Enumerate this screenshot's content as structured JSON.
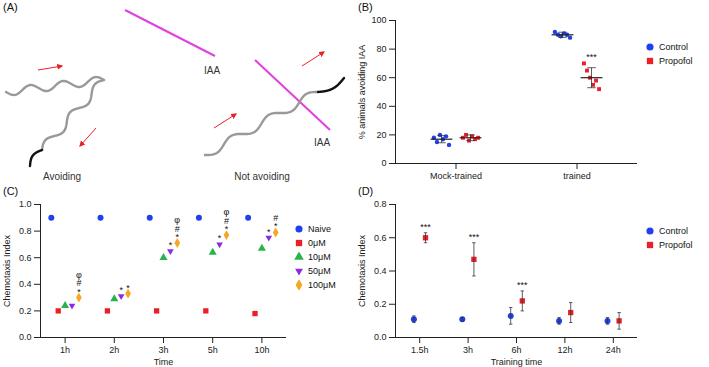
{
  "chart_data": [
    {
      "type": "diagram",
      "title": "(A)",
      "labels": [
        "Avoiding",
        "Not avoiding"
      ],
      "stimulus": "IAA"
    },
    {
      "type": "scatter",
      "title": "(B)",
      "categories": [
        "Mock-trained",
        "trained"
      ],
      "y_label": "% animals avoiding IAA",
      "ylim": [
        0,
        100
      ],
      "yticks": [
        0,
        20,
        40,
        60,
        80,
        100
      ],
      "legend": "right",
      "series": [
        {
          "name": "Control",
          "color": "#1f3ff0",
          "marker": "circle",
          "values": [
            17,
            90
          ],
          "sd": [
            2.5,
            1.8
          ],
          "points": [
            [
              18,
              15,
              20,
              17,
              19,
              13
            ],
            [
              92,
              90,
              89,
              91,
              90,
              88
            ]
          ]
        },
        {
          "name": "Propofol",
          "color": "#e8202a",
          "marker": "square",
          "values": [
            18,
            60
          ],
          "sd": [
            2,
            7
          ],
          "points": [
            [
              18,
              20,
              16,
              19,
              17,
              18
            ],
            [
              70,
              65,
              60,
              55,
              58,
              52
            ]
          ]
        }
      ],
      "annotations": [
        {
          "x": "trained",
          "series": "Propofol",
          "text": [
            "***"
          ]
        }
      ]
    },
    {
      "type": "scatter",
      "title": "(C)",
      "categories": [
        "1h",
        "2h",
        "3h",
        "5h",
        "10h"
      ],
      "x_label": "Time",
      "y_label": "Chemotaxis Index",
      "ylim": [
        0,
        1.0
      ],
      "yticks": [
        {
          "value": 0,
          "label": "0.0"
        },
        {
          "value": 0.2,
          "label": "0.2"
        },
        {
          "value": 0.4,
          "label": "0.4"
        },
        {
          "value": 0.6,
          "label": "0.6"
        },
        {
          "value": 0.8,
          "label": "0.8"
        },
        {
          "value": 1.0,
          "label": "1.0"
        }
      ],
      "legend": "right",
      "series": [
        {
          "name": "Naive",
          "color": "#1f3ff0",
          "marker": "circle",
          "values": [
            0.9,
            0.9,
            0.9,
            0.9,
            0.9
          ]
        },
        {
          "name": "0μM",
          "color": "#e8202a",
          "marker": "square",
          "values": [
            0.2,
            0.2,
            0.2,
            0.2,
            0.18
          ]
        },
        {
          "name": "10μM",
          "color": "#2ab34a",
          "marker": "triangle",
          "values": [
            0.24,
            0.29,
            0.6,
            0.64,
            0.67
          ]
        },
        {
          "name": "50μM",
          "color": "#8a2be2",
          "marker": "triangle-down",
          "values": [
            0.24,
            0.31,
            0.65,
            0.7,
            0.75
          ]
        },
        {
          "name": "100μM",
          "color": "#f5a623",
          "marker": "diamond",
          "values": [
            0.3,
            0.33,
            0.71,
            0.77,
            0.79
          ]
        }
      ],
      "annotations": [
        {
          "x": "1h",
          "series": "100μM",
          "text": [
            "φ",
            "#",
            "*"
          ]
        },
        {
          "x": "2h",
          "series": "50μM",
          "text": [
            "*"
          ]
        },
        {
          "x": "2h",
          "series": "100μM",
          "text": [
            "*"
          ]
        },
        {
          "x": "3h",
          "series": "50μM",
          "text": [
            "*"
          ]
        },
        {
          "x": "3h",
          "series": "100μM",
          "text": [
            "φ",
            "#",
            "*"
          ]
        },
        {
          "x": "5h",
          "series": "50μM",
          "text": [
            "*"
          ]
        },
        {
          "x": "5h",
          "series": "100μM",
          "text": [
            "φ",
            "#",
            "*"
          ]
        },
        {
          "x": "10h",
          "series": "50μM",
          "text": [
            "*"
          ]
        },
        {
          "x": "10h",
          "series": "100μM",
          "text": [
            "#",
            "*"
          ]
        }
      ]
    },
    {
      "type": "scatter",
      "title": "(D)",
      "categories": [
        "1.5h",
        "3h",
        "6h",
        "12h",
        "24h"
      ],
      "x_label": "Training time",
      "y_label": "Chemotaxis Index",
      "ylim": [
        0,
        0.8
      ],
      "yticks": [
        {
          "value": 0,
          "label": "0.0"
        },
        {
          "value": 0.2,
          "label": "0.2"
        },
        {
          "value": 0.4,
          "label": "0.4"
        },
        {
          "value": 0.6,
          "label": "0.6"
        },
        {
          "value": 0.8,
          "label": "0.8"
        }
      ],
      "legend": "right",
      "series": [
        {
          "name": "Control",
          "color": "#1f3ff0",
          "marker": "circle",
          "values": [
            0.11,
            0.11,
            0.13,
            0.1,
            0.1
          ],
          "sd": [
            0.02,
            0.01,
            0.05,
            0.02,
            0.02
          ]
        },
        {
          "name": "Propofol",
          "color": "#e8202a",
          "marker": "square",
          "values": [
            0.6,
            0.47,
            0.22,
            0.15,
            0.1
          ],
          "sd": [
            0.03,
            0.1,
            0.06,
            0.06,
            0.05
          ]
        }
      ],
      "annotations": [
        {
          "x": "1.5h",
          "series": "Propofol",
          "text": [
            "***"
          ]
        },
        {
          "x": "3h",
          "series": "Propofol",
          "text": [
            "***"
          ]
        },
        {
          "x": "6h",
          "series": "Propofol",
          "text": [
            "***"
          ]
        }
      ]
    }
  ]
}
